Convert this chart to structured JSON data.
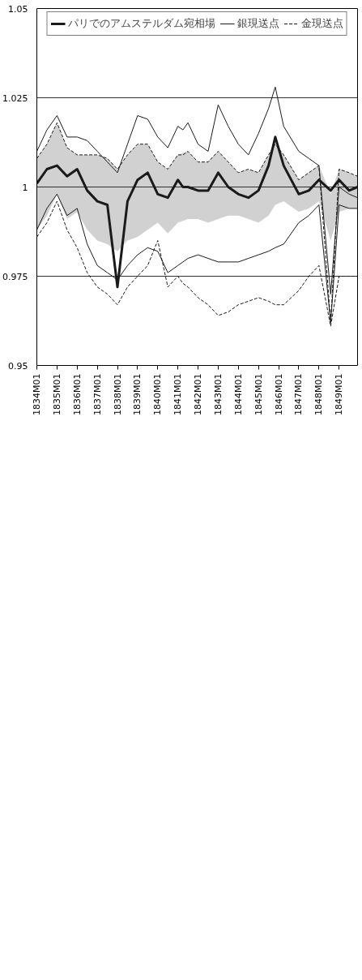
{
  "chart_data": {
    "type": "line",
    "x": [
      "1834-01",
      "1834-07",
      "1835-01",
      "1835-07",
      "1836-01",
      "1836-07",
      "1837-01",
      "1837-07",
      "1838-01",
      "1838-07",
      "1839-01",
      "1839-07",
      "1840-01",
      "1840-07",
      "1841-01",
      "1841-04",
      "1841-07",
      "1842-01",
      "1842-07",
      "1843-01",
      "1843-07",
      "1844-01",
      "1844-07",
      "1845-01",
      "1845-07",
      "1845-11",
      "1846-04",
      "1847-01",
      "1847-07",
      "1848-01",
      "1848-08",
      "1849-01",
      "1849-07",
      "1849-12"
    ],
    "series": [
      {
        "name": "パリでのアムステルダム宛相場",
        "color": "#1a1a1a",
        "values": [
          1.001,
          1.005,
          1.006,
          1.003,
          1.005,
          0.999,
          0.996,
          0.995,
          0.972,
          0.996,
          1.002,
          1.004,
          0.998,
          0.997,
          1.002,
          1.0,
          1.0,
          0.999,
          0.999,
          1.004,
          1.0,
          0.998,
          0.997,
          0.999,
          1.006,
          1.014,
          1.006,
          0.998,
          0.999,
          1.002,
          0.999,
          1.002,
          0.999,
          1.0
        ],
        "upper": [
          1.008,
          1.012,
          1.018,
          1.011,
          1.009,
          1.009,
          1.009,
          1.008,
          1.005,
          1.009,
          1.012,
          1.012,
          1.007,
          1.005,
          1.009,
          null,
          1.01,
          1.007,
          1.007,
          1.01,
          1.007,
          1.004,
          1.005,
          1.004,
          1.009,
          1.012,
          1.009,
          1.002,
          1.004,
          1.006,
          0.998,
          1.005,
          1.004,
          1.003
        ],
        "lower": [
          0.988,
          0.992,
          0.998,
          0.991,
          0.993,
          0.988,
          0.985,
          0.984,
          0.982,
          0.985,
          0.986,
          0.988,
          0.99,
          0.987,
          0.99,
          null,
          0.991,
          0.991,
          0.99,
          0.991,
          0.992,
          0.992,
          0.991,
          0.99,
          0.992,
          0.995,
          0.996,
          0.993,
          0.994,
          0.996,
          0.985,
          0.993,
          0.994,
          0.994
        ]
      },
      {
        "name": "銀現送点",
        "color": "#1a1a1a",
        "values": [
          1.01,
          1.016,
          1.02,
          1.014,
          1.014,
          1.013,
          1.01,
          1.007,
          1.004,
          1.012,
          1.02,
          1.019,
          1.014,
          1.011,
          1.017,
          1.016,
          1.018,
          1.012,
          1.01,
          1.023,
          1.017,
          1.012,
          1.009,
          1.015,
          1.022,
          1.028,
          1.017,
          1.01,
          1.008,
          1.006,
          0.97,
          1.0,
          0.998,
          0.997
        ]
      },
      {
        "color": "#1a1a1a",
        "values": [
          0.988,
          0.994,
          0.998,
          0.992,
          0.994,
          0.984,
          0.978,
          0.976,
          0.974,
          0.978,
          0.981,
          0.983,
          0.982,
          0.976,
          0.978,
          0.979,
          0.98,
          0.981,
          0.98,
          0.979,
          0.979,
          0.979,
          0.98,
          0.981,
          0.982,
          0.983,
          0.984,
          0.99,
          0.992,
          0.995,
          0.962,
          0.995,
          0.994,
          0.994
        ]
      },
      {
        "name": "金現送点",
        "color": "#1a1a1a",
        "line_style": "dashed",
        "values": [
          1.008,
          1.012,
          1.018,
          1.011,
          1.009,
          1.009,
          1.009,
          1.008,
          1.005,
          1.009,
          1.012,
          1.012,
          1.007,
          1.005,
          1.009,
          1.009,
          1.01,
          1.007,
          1.007,
          1.01,
          1.007,
          1.004,
          1.005,
          1.004,
          1.009,
          1.012,
          1.009,
          1.002,
          1.004,
          1.006,
          0.962,
          1.005,
          1.004,
          1.003
        ]
      },
      {
        "color": "#1a1a1a",
        "line_style": "dashed",
        "values": [
          0.986,
          0.99,
          0.996,
          0.988,
          0.983,
          0.976,
          0.972,
          0.97,
          0.967,
          0.972,
          0.975,
          0.978,
          0.985,
          0.972,
          0.975,
          0.973,
          0.972,
          0.969,
          0.967,
          0.964,
          0.965,
          0.967,
          0.968,
          0.969,
          0.968,
          0.967,
          0.967,
          0.971,
          0.975,
          0.978,
          0.961,
          0.975,
          0.975,
          0.975
        ]
      }
    ],
    "xlim": [
      "1834-01",
      "1849-12"
    ],
    "xticks": [
      {
        "value": "1834-01",
        "label": "1834M01"
      },
      {
        "value": "1835-01",
        "label": "1835M01"
      },
      {
        "value": "1836-01",
        "label": "1836M01"
      },
      {
        "value": "1837-01",
        "label": "1837M01"
      },
      {
        "value": "1838-01",
        "label": "1838M01"
      },
      {
        "value": "1839-01",
        "label": "1839M01"
      },
      {
        "value": "1840-01",
        "label": "1840M01"
      },
      {
        "value": "1841-01",
        "label": "1841M01"
      },
      {
        "value": "1842-01",
        "label": "1842M01"
      },
      {
        "value": "1843-01",
        "label": "1843M01"
      },
      {
        "value": "1844-01",
        "label": "1844M01"
      },
      {
        "value": "1845-01",
        "label": "1845M01"
      },
      {
        "value": "1846-01",
        "label": "1846M01"
      },
      {
        "value": "1847-01",
        "label": "1847M01"
      },
      {
        "value": "1848-01",
        "label": "1848M01"
      },
      {
        "value": "1849-01",
        "label": "1849M01"
      }
    ],
    "ylim": [
      0.95,
      1.05
    ],
    "yticks": [
      0.95,
      0.975,
      1,
      1.025,
      1.05
    ],
    "grid": "y",
    "legend": "top",
    "line_style": "solid",
    "marker": "none"
  }
}
